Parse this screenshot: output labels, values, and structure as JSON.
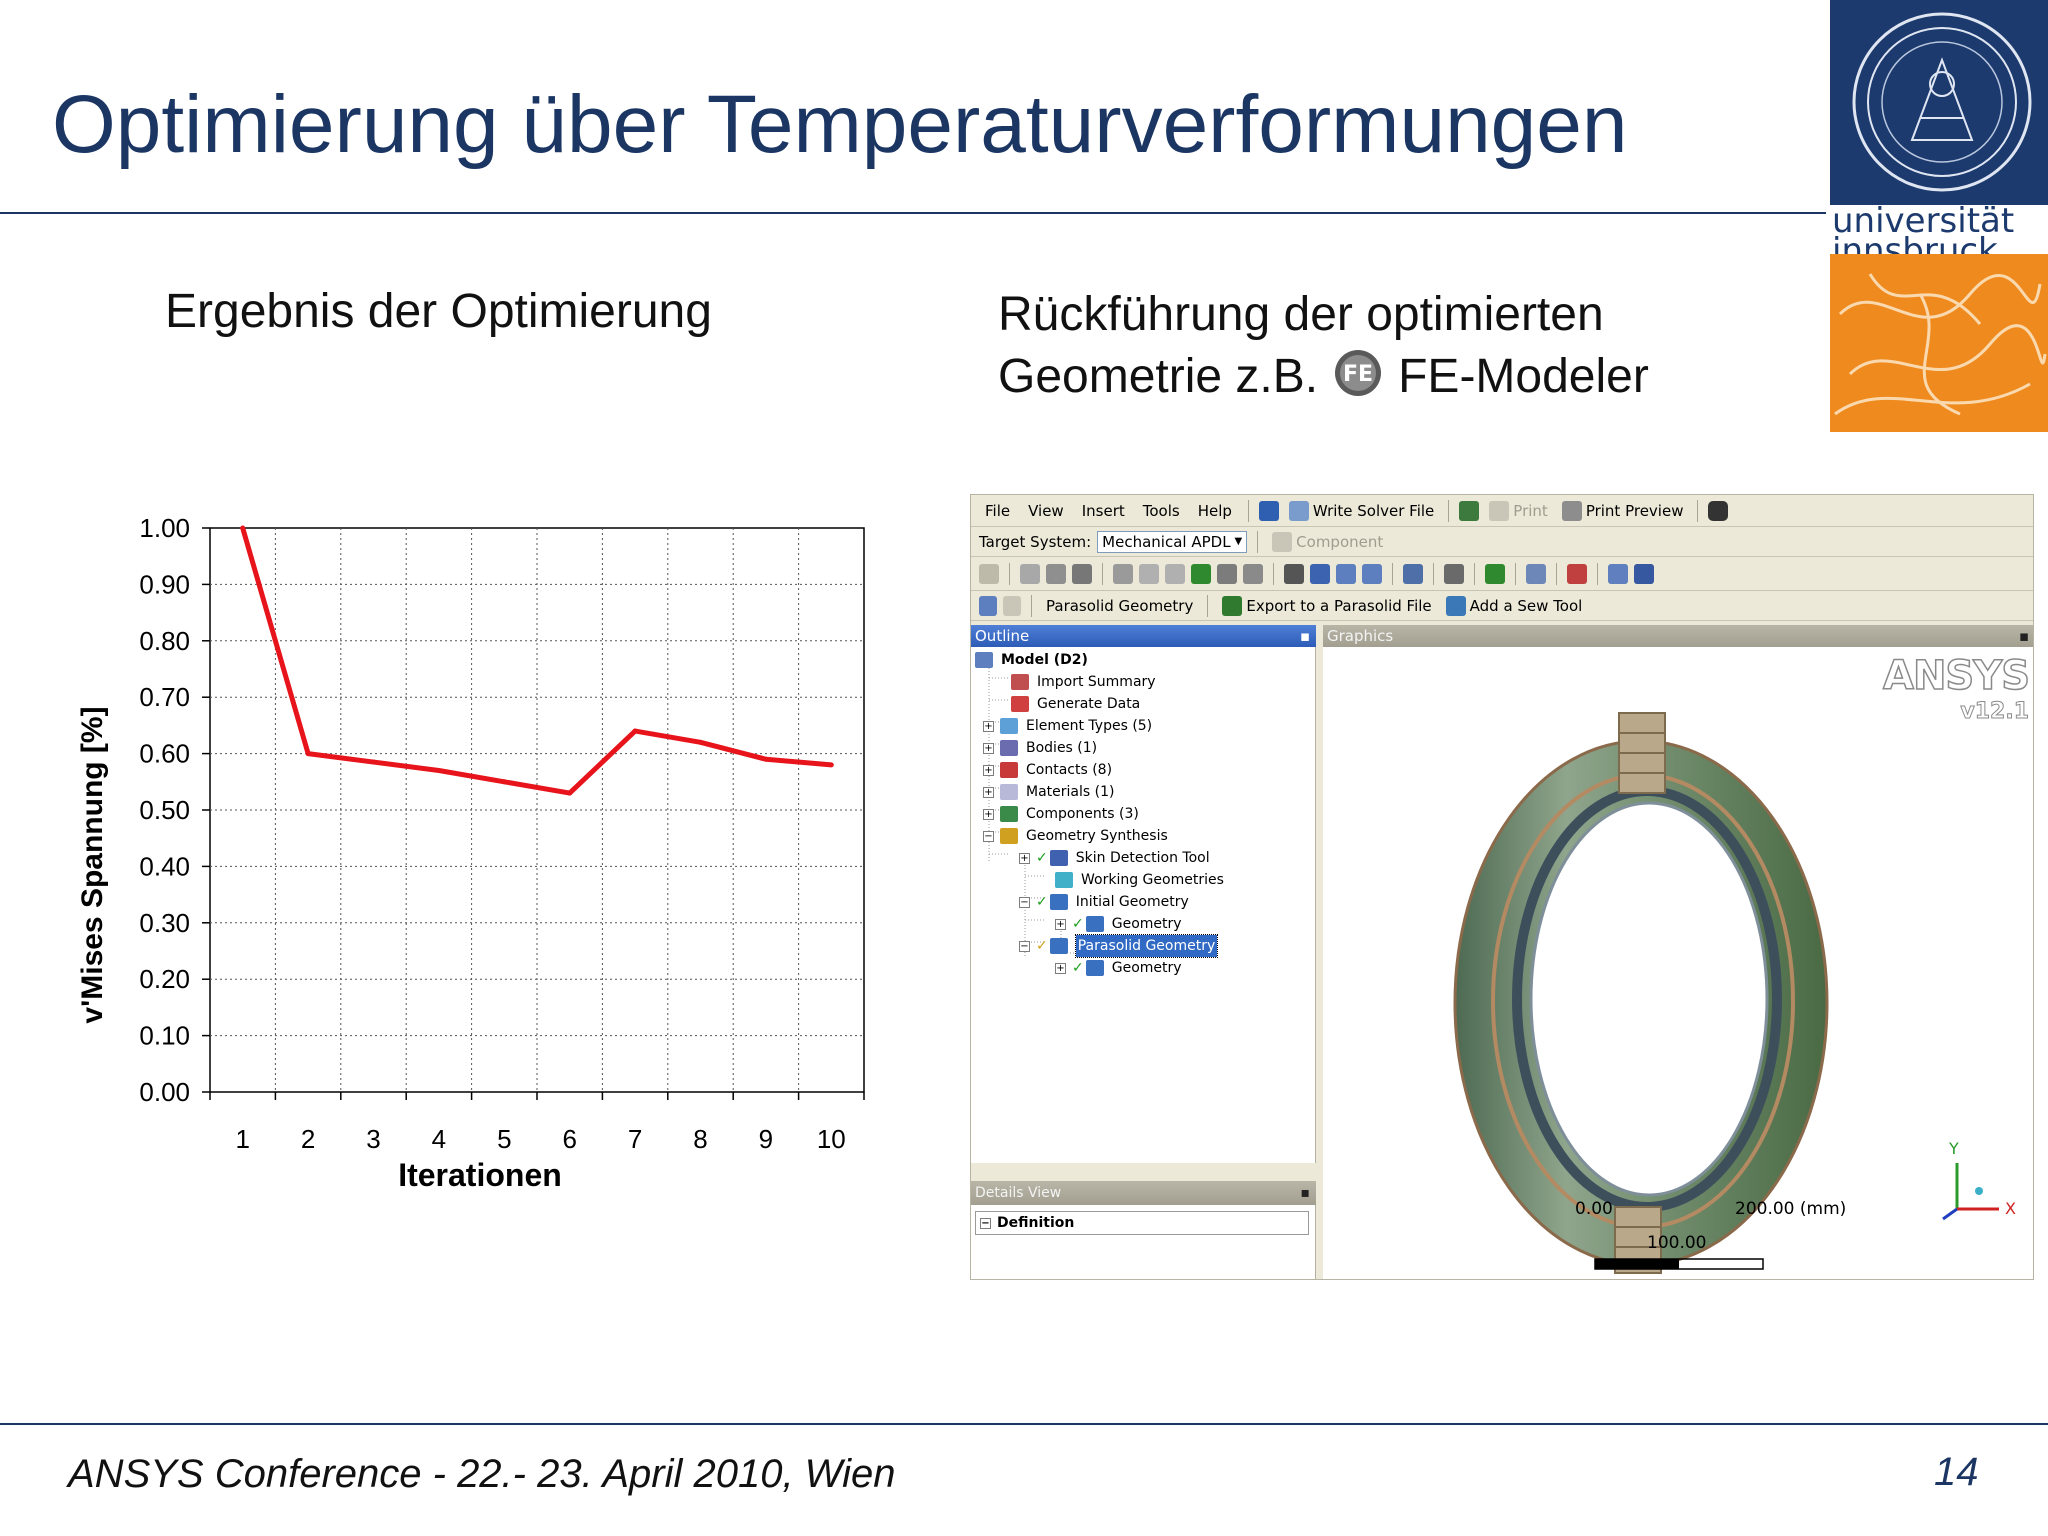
{
  "slide": {
    "title": "Optimierung über Temperaturverformungen",
    "left_heading": "Ergebnis der Optimierung",
    "right_heading_line1": "Rückführung der optimierten",
    "right_heading_line2_pre": "Geometrie z.B.",
    "right_heading_line2_post": "FE-Modeler",
    "fe_icon_text": "FE",
    "footer": "ANSYS Conference  - 22.- 23. April 2010, Wien",
    "page_number": "14",
    "logo_line1": "universität",
    "logo_line2": "innsbruck"
  },
  "chart_data": {
    "type": "line",
    "x": [
      1,
      2,
      3,
      4,
      5,
      6,
      7,
      8,
      9,
      10
    ],
    "categories": [
      "1",
      "2",
      "3",
      "4",
      "5",
      "6",
      "7",
      "8",
      "9",
      "10"
    ],
    "series": [
      {
        "values": [
          1.0,
          0.6,
          0.585,
          0.57,
          0.55,
          0.53,
          0.64,
          0.62,
          0.59,
          0.58
        ],
        "color": "#e8141c"
      }
    ],
    "xlabel": "Iterationen",
    "ylabel": "v'Mises Spannung [%]",
    "ylim": [
      0,
      1.0
    ],
    "yticks": [
      "0.00",
      "0.10",
      "0.20",
      "0.30",
      "0.40",
      "0.50",
      "0.60",
      "0.70",
      "0.80",
      "0.90",
      "1.00"
    ],
    "grid": true,
    "legend": "none"
  },
  "ansys": {
    "menu": [
      "File",
      "View",
      "Insert",
      "Tools",
      "Help"
    ],
    "toolbar1": {
      "write_solver": "Write Solver File",
      "print": "Print",
      "print_preview": "Print Preview"
    },
    "toolbar2": {
      "target_label": "Target System:",
      "target_value": "Mechanical APDL",
      "component": "Component"
    },
    "toolbar4": {
      "parasolid": "Parasolid Geometry",
      "export": "Export to a Parasolid File",
      "sew": "Add a Sew Tool"
    },
    "outline_title": "Outline",
    "graphics_title": "Graphics",
    "details_title": "Details View",
    "details_row": "Definition",
    "tree": [
      {
        "label": "Model (D2)"
      },
      {
        "label": "Import Summary"
      },
      {
        "label": "Generate Data"
      },
      {
        "label": "Element Types (5)"
      },
      {
        "label": "Bodies (1)"
      },
      {
        "label": "Contacts (8)"
      },
      {
        "label": "Materials (1)"
      },
      {
        "label": "Components (3)"
      },
      {
        "label": "Geometry Synthesis"
      },
      {
        "label": "Skin Detection Tool"
      },
      {
        "label": "Working Geometries"
      },
      {
        "label": "Initial Geometry"
      },
      {
        "label": "Geometry"
      },
      {
        "label": "Parasolid Geometry"
      },
      {
        "label": "Geometry"
      }
    ],
    "brand": "ANSYS",
    "version": "v12.1",
    "scale": {
      "left": "0.00",
      "right": "200.00 (mm)",
      "mid": "100.00"
    },
    "axis_y": "Y",
    "axis_x": "X"
  }
}
